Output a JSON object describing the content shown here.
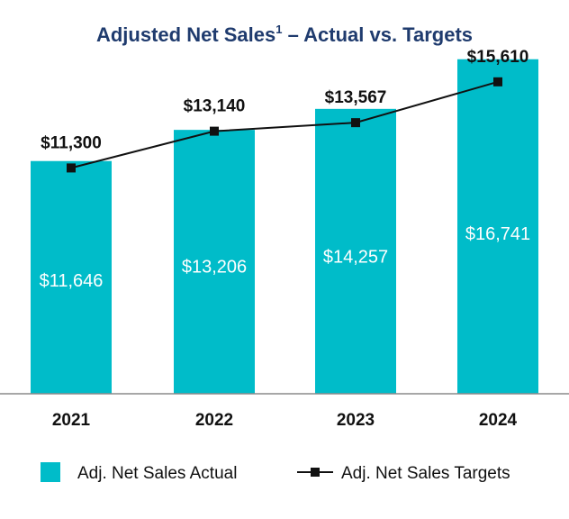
{
  "chart_data": {
    "type": "bar",
    "title": "Adjusted Net Sales",
    "title_superscript": "1",
    "title_suffix": " – Actual vs. Targets",
    "categories": [
      "2021",
      "2022",
      "2023",
      "2024"
    ],
    "series": [
      {
        "name": "Adj. Net Sales Actual",
        "type": "bar",
        "values": [
          11646,
          13206,
          14257,
          16741
        ],
        "labels": [
          "$11,646",
          "$13,206",
          "$14,257",
          "$16,741"
        ]
      },
      {
        "name": "Adj. Net Sales Targets",
        "type": "line",
        "values": [
          11300,
          13140,
          13567,
          15610
        ],
        "labels": [
          "$11,300",
          "$13,140",
          "$13,567",
          "$15,610"
        ]
      }
    ],
    "ylim": [
      0,
      17000
    ],
    "xlabel": "",
    "ylabel": "",
    "grid": false,
    "legend_position": "bottom"
  },
  "colors": {
    "title": "#1f3b6e",
    "bar": "#00bcc9",
    "line": "#111111",
    "axis": "#8a8a8a",
    "text": "#111111",
    "bar_label": "#ffffff"
  }
}
